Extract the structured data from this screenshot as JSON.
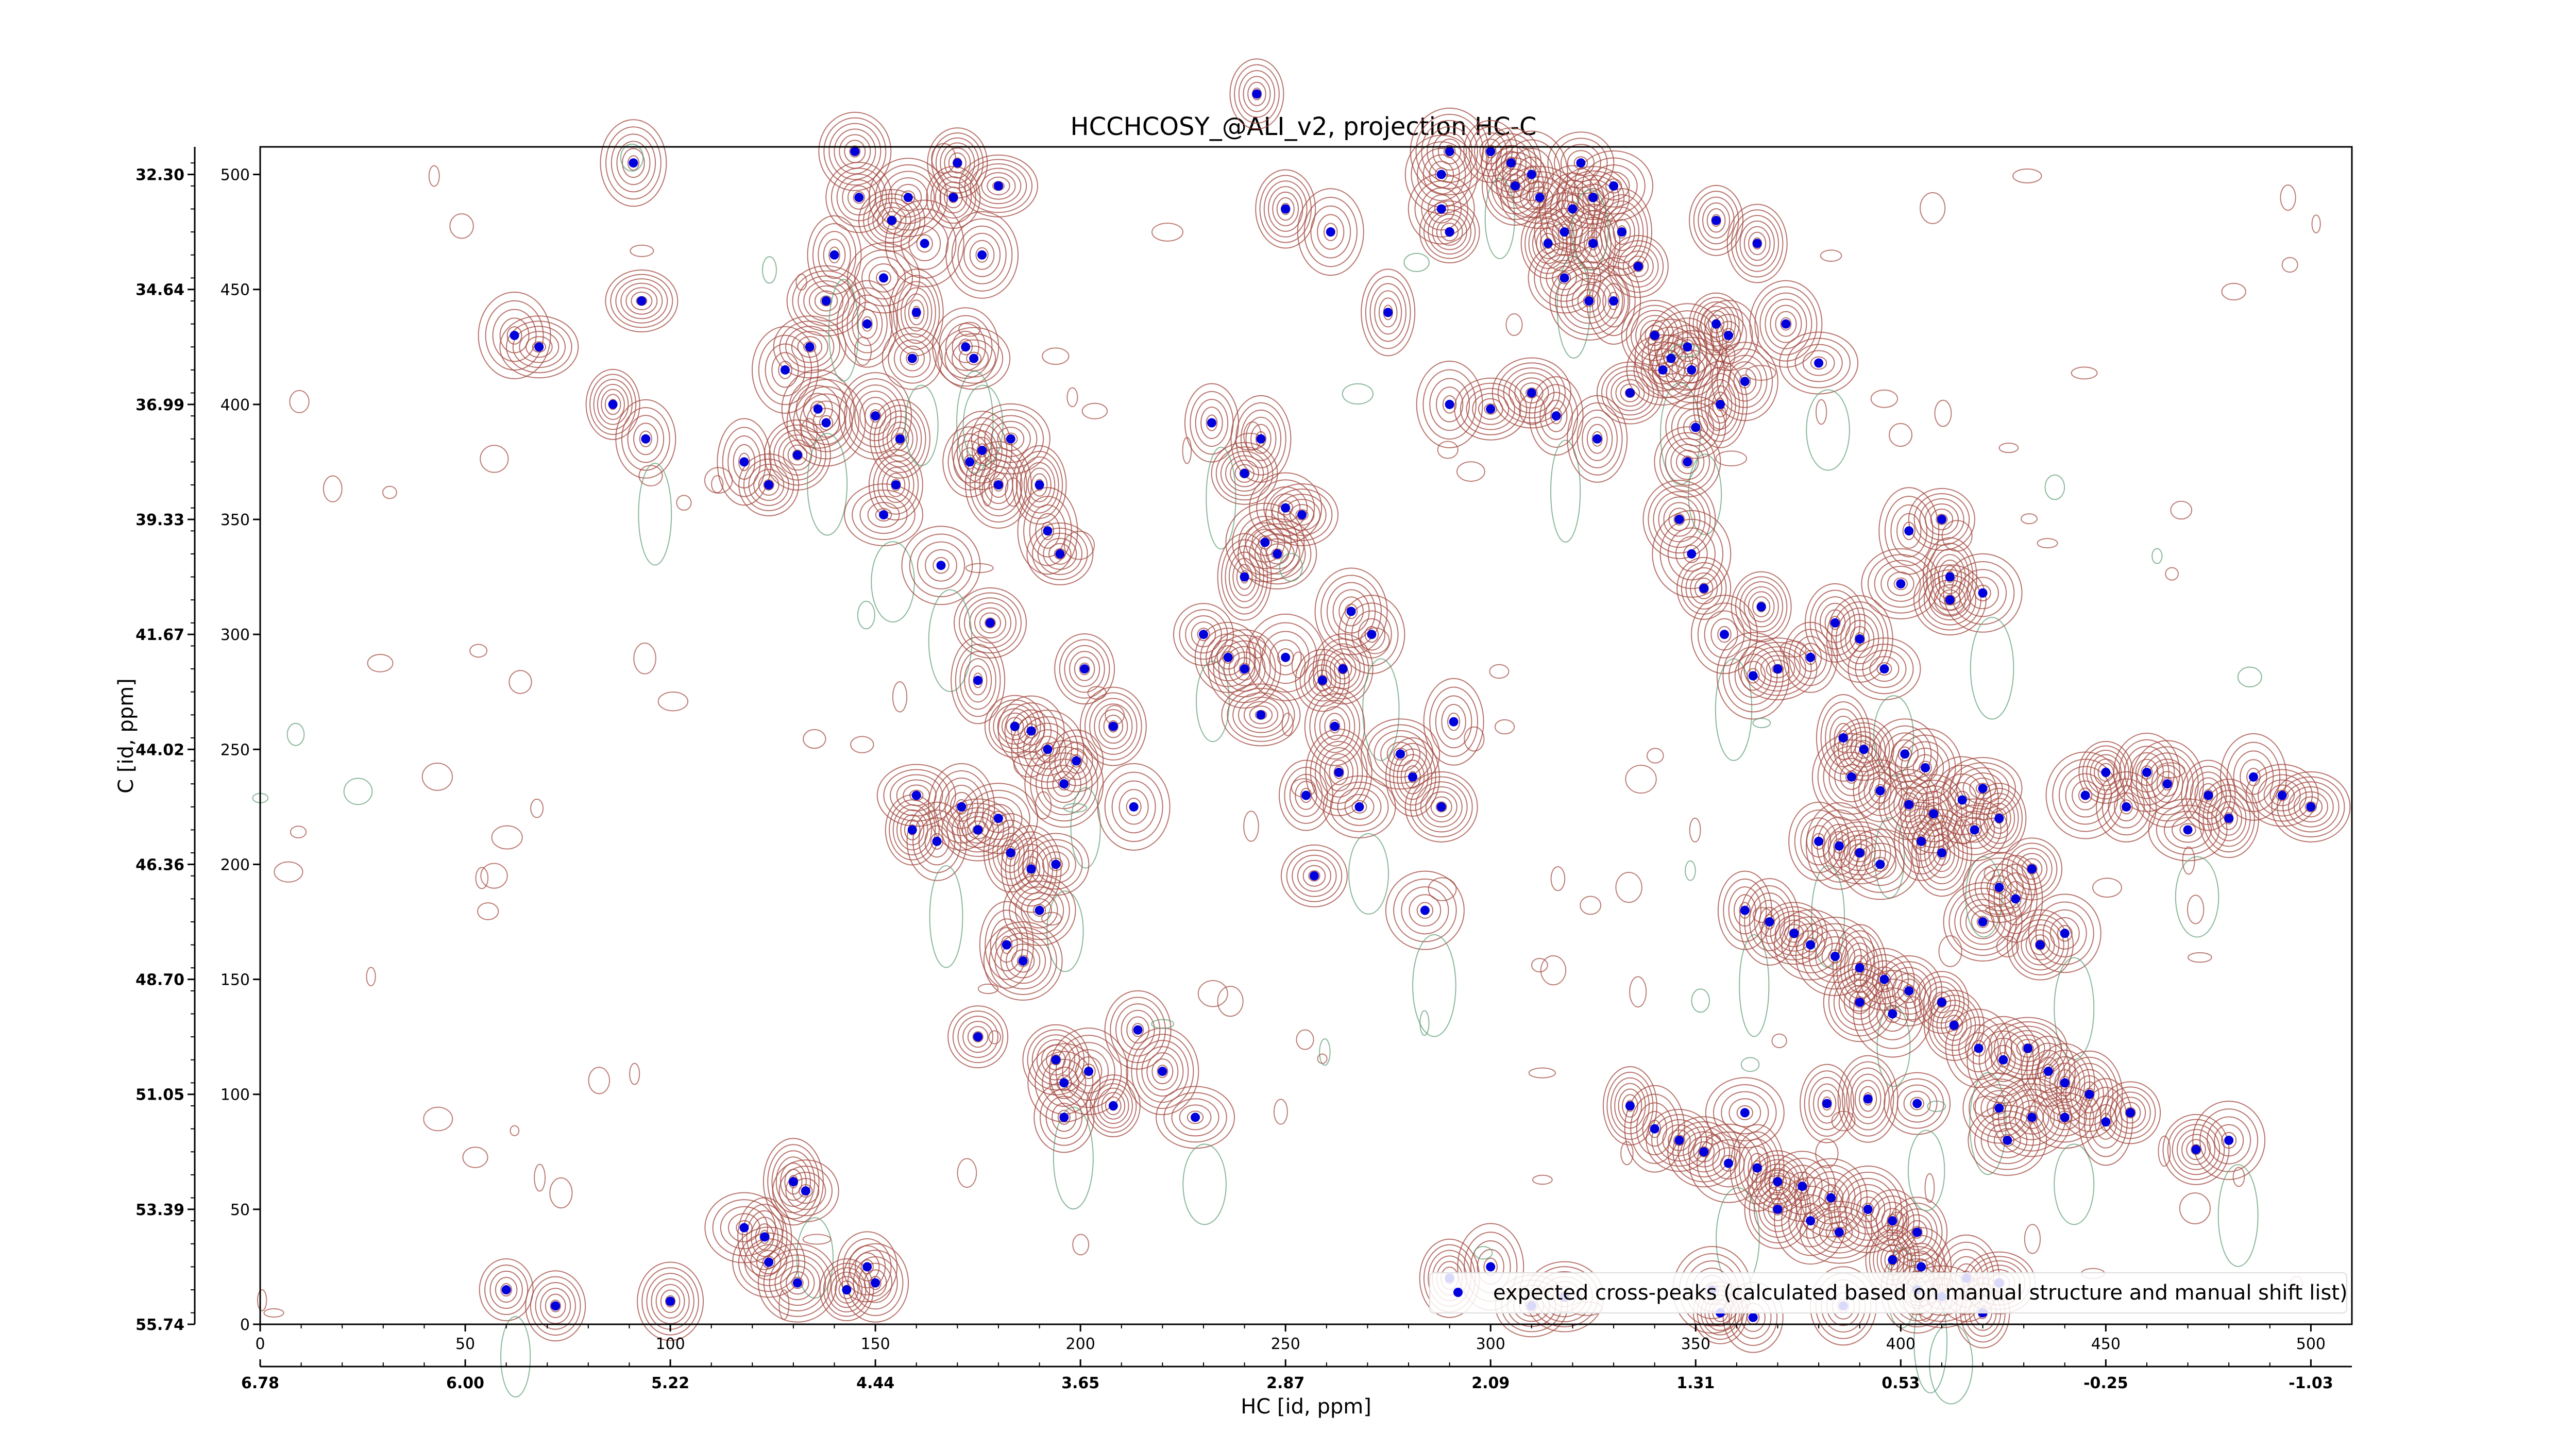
{
  "chart_data": {
    "type": "scatter",
    "title": "HCCHCOSY_@ALI_v2, projection HC-C",
    "xlabel": "HC [id, ppm]",
    "ylabel": "C [id, ppm]",
    "x_index_range": [
      0,
      510
    ],
    "y_index_range": [
      0,
      512
    ],
    "x_index_ticks": [
      "0",
      "50",
      "100",
      "150",
      "200",
      "250",
      "300",
      "350",
      "400",
      "450",
      "500"
    ],
    "x_ppm_ticks": [
      "6.78",
      "6.00",
      "5.22",
      "4.44",
      "3.65",
      "2.87",
      "2.09",
      "1.31",
      "0.53",
      "-0.25",
      "-1.03"
    ],
    "y_index_ticks": [
      "0",
      "50",
      "100",
      "150",
      "200",
      "250",
      "300",
      "350",
      "400",
      "450",
      "500"
    ],
    "y_ppm_ticks": [
      "55.74",
      "53.39",
      "51.05",
      "48.70",
      "46.36",
      "44.02",
      "41.67",
      "39.33",
      "36.99",
      "34.64",
      "32.30"
    ],
    "grid": false,
    "legend_position": "bottom-right",
    "colors": {
      "positive_contour": "#a0463c",
      "negative_contour": "#5a9a70",
      "marker": "#0000dd"
    },
    "series": [
      {
        "name": "expected cross-peaks (calculated based on manual structure and manual shift list)",
        "marker": "circle",
        "color": "#0000dd",
        "points": [
          [
            60,
            15
          ],
          [
            72,
            8
          ],
          [
            100,
            10
          ],
          [
            62,
            430
          ],
          [
            68,
            425
          ],
          [
            86,
            400
          ],
          [
            94,
            385
          ],
          [
            91,
            505
          ],
          [
            93,
            445
          ],
          [
            118,
            42
          ],
          [
            123,
            38
          ],
          [
            130,
            62
          ],
          [
            133,
            58
          ],
          [
            124,
            27
          ],
          [
            131,
            18
          ],
          [
            118,
            375
          ],
          [
            124,
            365
          ],
          [
            131,
            378
          ],
          [
            136,
            398
          ],
          [
            138,
            392
          ],
          [
            143,
            15
          ],
          [
            148,
            25
          ],
          [
            150,
            18
          ],
          [
            150,
            395
          ],
          [
            152,
            352
          ],
          [
            155,
            365
          ],
          [
            156,
            385
          ],
          [
            128,
            415
          ],
          [
            134,
            425
          ],
          [
            138,
            445
          ],
          [
            140,
            465
          ],
          [
            148,
            435
          ],
          [
            154,
            480
          ],
          [
            152,
            455
          ],
          [
            158,
            490
          ],
          [
            160,
            440
          ],
          [
            159,
            420
          ],
          [
            146,
            490
          ],
          [
            145,
            510
          ],
          [
            162,
            470
          ],
          [
            169,
            490
          ],
          [
            170,
            505
          ],
          [
            172,
            425
          ],
          [
            176,
            465
          ],
          [
            180,
            495
          ],
          [
            173,
            375
          ],
          [
            176,
            380
          ],
          [
            180,
            365
          ],
          [
            174,
            420
          ],
          [
            183,
            385
          ],
          [
            190,
            365
          ],
          [
            192,
            345
          ],
          [
            195,
            335
          ],
          [
            178,
            305
          ],
          [
            166,
            330
          ],
          [
            175,
            280
          ],
          [
            184,
            260
          ],
          [
            188,
            258
          ],
          [
            192,
            250
          ],
          [
            196,
            235
          ],
          [
            199,
            245
          ],
          [
            201,
            285
          ],
          [
            208,
            260
          ],
          [
            213,
            225
          ],
          [
            160,
            230
          ],
          [
            159,
            215
          ],
          [
            165,
            210
          ],
          [
            171,
            225
          ],
          [
            175,
            215
          ],
          [
            180,
            220
          ],
          [
            183,
            205
          ],
          [
            188,
            198
          ],
          [
            194,
            200
          ],
          [
            190,
            180
          ],
          [
            186,
            158
          ],
          [
            182,
            165
          ],
          [
            175,
            125
          ],
          [
            194,
            115
          ],
          [
            196,
            105
          ],
          [
            202,
            110
          ],
          [
            208,
            95
          ],
          [
            196,
            90
          ],
          [
            214,
            128
          ],
          [
            220,
            110
          ],
          [
            228,
            90
          ],
          [
            243,
            535
          ],
          [
            250,
            485
          ],
          [
            261,
            475
          ],
          [
            254,
            352
          ],
          [
            248,
            335
          ],
          [
            232,
            392
          ],
          [
            244,
            385
          ],
          [
            240,
            370
          ],
          [
            250,
            355
          ],
          [
            245,
            340
          ],
          [
            240,
            325
          ],
          [
            230,
            300
          ],
          [
            236,
            290
          ],
          [
            240,
            285
          ],
          [
            250,
            290
          ],
          [
            259,
            280
          ],
          [
            264,
            285
          ],
          [
            271,
            300
          ],
          [
            266,
            310
          ],
          [
            244,
            265
          ],
          [
            255,
            230
          ],
          [
            262,
            260
          ],
          [
            263,
            240
          ],
          [
            268,
            225
          ],
          [
            278,
            248
          ],
          [
            281,
            238
          ],
          [
            291,
            262
          ],
          [
            257,
            195
          ],
          [
            288,
            225
          ],
          [
            284,
            180
          ],
          [
            275,
            440
          ],
          [
            290,
            475
          ],
          [
            288,
            485
          ],
          [
            288,
            500
          ],
          [
            290,
            510
          ],
          [
            300,
            510
          ],
          [
            305,
            505
          ],
          [
            306,
            495
          ],
          [
            310,
            500
          ],
          [
            312,
            490
          ],
          [
            314,
            470
          ],
          [
            318,
            475
          ],
          [
            320,
            485
          ],
          [
            325,
            490
          ],
          [
            330,
            495
          ],
          [
            325,
            470
          ],
          [
            332,
            475
          ],
          [
            322,
            505
          ],
          [
            318,
            455
          ],
          [
            324,
            445
          ],
          [
            330,
            445
          ],
          [
            336,
            460
          ],
          [
            340,
            430
          ],
          [
            344,
            420
          ],
          [
            348,
            425
          ],
          [
            355,
            435
          ],
          [
            358,
            430
          ],
          [
            362,
            410
          ],
          [
            372,
            435
          ],
          [
            380,
            418
          ],
          [
            355,
            480
          ],
          [
            365,
            470
          ],
          [
            290,
            400
          ],
          [
            300,
            398
          ],
          [
            310,
            405
          ],
          [
            316,
            395
          ],
          [
            326,
            385
          ],
          [
            334,
            405
          ],
          [
            342,
            415
          ],
          [
            349,
            415
          ],
          [
            356,
            400
          ],
          [
            350,
            390
          ],
          [
            348,
            375
          ],
          [
            346,
            350
          ],
          [
            349,
            335
          ],
          [
            352,
            320
          ],
          [
            366,
            312
          ],
          [
            357,
            300
          ],
          [
            364,
            282
          ],
          [
            370,
            285
          ],
          [
            378,
            290
          ],
          [
            384,
            305
          ],
          [
            390,
            298
          ],
          [
            396,
            285
          ],
          [
            400,
            322
          ],
          [
            412,
            325
          ],
          [
            402,
            345
          ],
          [
            410,
            350
          ],
          [
            412,
            315
          ],
          [
            420,
            318
          ],
          [
            386,
            255
          ],
          [
            391,
            250
          ],
          [
            401,
            248
          ],
          [
            406,
            242
          ],
          [
            388,
            238
          ],
          [
            395,
            232
          ],
          [
            402,
            226
          ],
          [
            408,
            222
          ],
          [
            415,
            228
          ],
          [
            420,
            233
          ],
          [
            424,
            220
          ],
          [
            380,
            210
          ],
          [
            385,
            208
          ],
          [
            390,
            205
          ],
          [
            395,
            200
          ],
          [
            405,
            210
          ],
          [
            410,
            205
          ],
          [
            418,
            215
          ],
          [
            424,
            190
          ],
          [
            420,
            175
          ],
          [
            428,
            185
          ],
          [
            432,
            198
          ],
          [
            434,
            165
          ],
          [
            440,
            170
          ],
          [
            445,
            230
          ],
          [
            450,
            240
          ],
          [
            455,
            225
          ],
          [
            460,
            240
          ],
          [
            465,
            235
          ],
          [
            470,
            215
          ],
          [
            475,
            230
          ],
          [
            480,
            220
          ],
          [
            486,
            238
          ],
          [
            493,
            230
          ],
          [
            500,
            225
          ],
          [
            362,
            180
          ],
          [
            368,
            175
          ],
          [
            374,
            170
          ],
          [
            378,
            165
          ],
          [
            384,
            160
          ],
          [
            390,
            155
          ],
          [
            396,
            150
          ],
          [
            402,
            145
          ],
          [
            390,
            140
          ],
          [
            398,
            135
          ],
          [
            410,
            140
          ],
          [
            413,
            130
          ],
          [
            419,
            120
          ],
          [
            425,
            115
          ],
          [
            431,
            120
          ],
          [
            436,
            110
          ],
          [
            440,
            105
          ],
          [
            446,
            100
          ],
          [
            440,
            90
          ],
          [
            426,
            80
          ],
          [
            334,
            95
          ],
          [
            340,
            85
          ],
          [
            346,
            80
          ],
          [
            352,
            75
          ],
          [
            358,
            70
          ],
          [
            365,
            68
          ],
          [
            370,
            62
          ],
          [
            376,
            60
          ],
          [
            383,
            55
          ],
          [
            392,
            50
          ],
          [
            398,
            45
          ],
          [
            404,
            40
          ],
          [
            370,
            50
          ],
          [
            378,
            45
          ],
          [
            385,
            40
          ],
          [
            398,
            28
          ],
          [
            405,
            25
          ],
          [
            416,
            20
          ],
          [
            424,
            18
          ],
          [
            362,
            92
          ],
          [
            382,
            96
          ],
          [
            392,
            98
          ],
          [
            404,
            96
          ],
          [
            424,
            94
          ],
          [
            432,
            90
          ],
          [
            450,
            88
          ],
          [
            456,
            92
          ],
          [
            472,
            76
          ],
          [
            480,
            80
          ],
          [
            354,
            15
          ],
          [
            356,
            5
          ],
          [
            364,
            3
          ],
          [
            386,
            8
          ],
          [
            404,
            15
          ],
          [
            410,
            12
          ],
          [
            420,
            5
          ],
          [
            290,
            20
          ],
          [
            300,
            25
          ],
          [
            310,
            8
          ],
          [
            318,
            12
          ]
        ]
      }
    ]
  }
}
